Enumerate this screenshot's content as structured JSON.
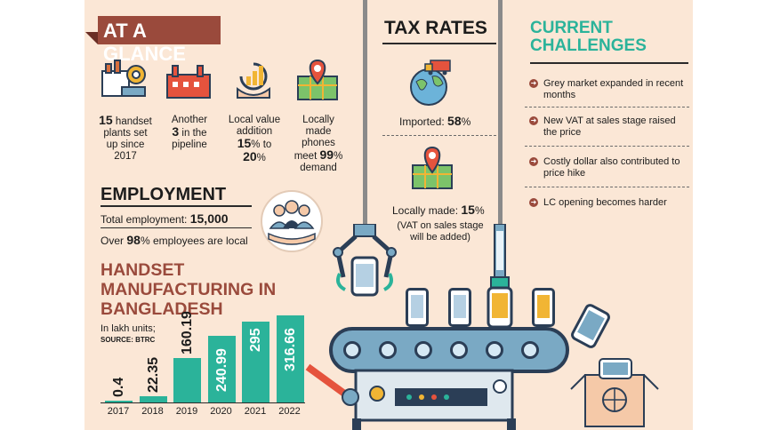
{
  "header": {
    "at_a_glance": "AT A GLANCE"
  },
  "glance_stats": [
    {
      "icon": "factory-icon",
      "line1": "handset",
      "big": "15",
      "line2": "plants set",
      "line3": "up since",
      "line4": "2017"
    },
    {
      "icon": "factory-pipeline-icon",
      "line1": "Another",
      "big": "3",
      "line2": "in the",
      "line3": "pipeline"
    },
    {
      "icon": "value-growth-icon",
      "line1": "Local value",
      "line2": "addition",
      "big_a": "15",
      "pct_a": "%",
      "to": "to",
      "big_b": "20",
      "pct_b": "%"
    },
    {
      "icon": "map-pin-icon",
      "line1": "Locally",
      "line2": "made",
      "line3": "phones",
      "line4": "meet",
      "big": "99",
      "pct": "%",
      "line5": "demand"
    }
  ],
  "employment": {
    "title": "EMPLOYMENT",
    "total_label": "Total employment:",
    "total_value": "15,000",
    "over_label": "Over",
    "over_value": "98",
    "over_suffix": "% employees are local",
    "icon": "workers-hand-icon"
  },
  "manufacturing": {
    "title_line1": "HANDSET",
    "title_line2": "MANUFACTURING IN",
    "title_line3": "BANGLADESH",
    "unit": "In lakh units;",
    "source": "SOURCE: BTRC"
  },
  "chart_data": {
    "type": "bar",
    "categories": [
      "2017",
      "2018",
      "2019",
      "2020",
      "2021",
      "2022"
    ],
    "values": [
      0.4,
      22.35,
      160.19,
      240.99,
      295,
      316.66
    ],
    "value_labels": [
      "0.4",
      "22.35",
      "160.19",
      "240.99",
      "295",
      "316.66"
    ],
    "color": "#2bb39a"
  },
  "tax": {
    "title": "TAX RATES",
    "imported_label": "Imported:",
    "imported_value": "58",
    "imported_pct": "%",
    "local_label": "Locally made:",
    "local_value": "15",
    "local_pct": "%",
    "note_line1": "(VAT on sales stage",
    "note_line2": "will be added)",
    "icons": [
      "globe-truck-icon",
      "map-pin-icon"
    ]
  },
  "challenges": {
    "title_line1": "CURRENT",
    "title_line2": "CHALLENGES",
    "items": [
      {
        "line1": "Grey market expanded in recent",
        "line2": "months"
      },
      {
        "line1": "New VAT at sales stage raised",
        "line2": "the price"
      },
      {
        "line1": "Costly dollar also contributed to",
        "line2": "price hike"
      },
      {
        "line1": "LC opening becomes harder",
        "line2": ""
      }
    ]
  },
  "colors": {
    "brand": "#9a4a3c",
    "teal": "#2bb39a",
    "navy": "#2b3e56",
    "bg": "#fbe7d6"
  }
}
